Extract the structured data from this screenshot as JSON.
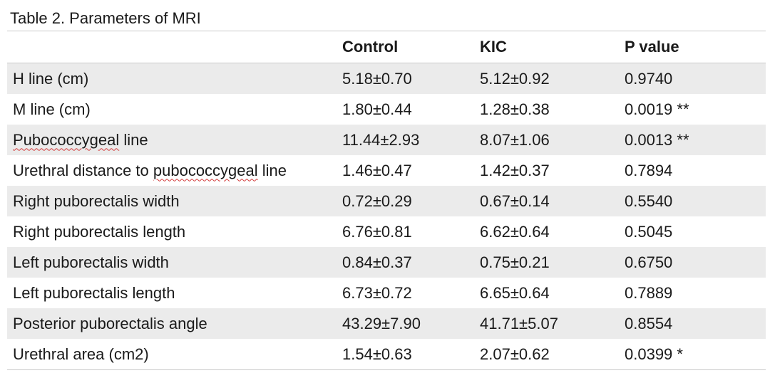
{
  "caption": "Table 2. Parameters of MRI",
  "columns": [
    "",
    "Control",
    "KIC",
    "P value"
  ],
  "rows": [
    {
      "label": "H line (cm)",
      "control": "5.18±0.70",
      "kic": "5.12±0.92",
      "p": "0.9740"
    },
    {
      "label": "M line (cm)",
      "control": "1.80±0.44",
      "kic": "1.28±0.38",
      "p": "0.0019 **"
    },
    {
      "label_parts": [
        "Pubococcygeal",
        " line"
      ],
      "control": "11.44±2.93",
      "kic": "8.07±1.06",
      "p": "0.0013 **"
    },
    {
      "label_parts": [
        "Urethral distance to ",
        "pubococcygeal",
        " line"
      ],
      "control": "1.46±0.47",
      "kic": "1.42±0.37",
      "p": "0.7894"
    },
    {
      "label": "Right puborectalis width",
      "control": "0.72±0.29",
      "kic": "0.67±0.14",
      "p": "0.5540"
    },
    {
      "label": "Right puborectalis length",
      "control": "6.76±0.81",
      "kic": "6.62±0.64",
      "p": "0.5045"
    },
    {
      "label": "Left puborectalis width",
      "control": "0.84±0.37",
      "kic": "0.75±0.21",
      "p": "0.6750"
    },
    {
      "label": "Left puborectalis length",
      "control": "6.73±0.72",
      "kic": "6.65±0.64",
      "p": "0.7889"
    },
    {
      "label": "Posterior puborectalis angle",
      "control": "43.29±7.90",
      "kic": "41.71±5.07",
      "p": "0.8554"
    },
    {
      "label": "Urethral area (cm2)",
      "control": "1.54±0.63",
      "kic": "2.07±0.62",
      "p": "0.0399 *"
    }
  ]
}
